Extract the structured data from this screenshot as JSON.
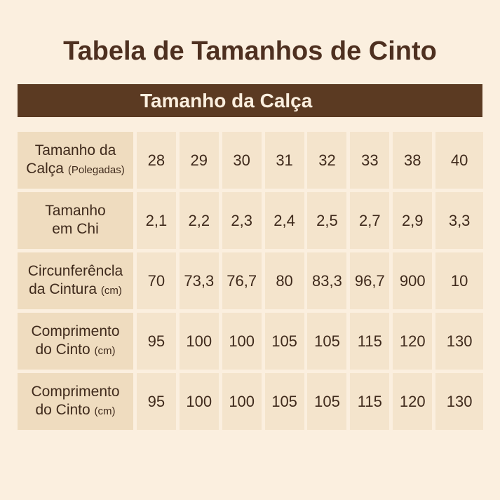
{
  "title": "Tabela de Tamanhos de Cinto",
  "header": "Tamanho da Calça",
  "rows": [
    {
      "label1": "Tamanho da",
      "label2": "Calça",
      "unit": "(Polegadas)",
      "values": [
        "28",
        "29",
        "30",
        "31",
        "32",
        "33",
        "38",
        "40"
      ]
    },
    {
      "label1": "Tamanho",
      "label2": "em Chi",
      "unit": "",
      "values": [
        "2,1",
        "2,2",
        "2,3",
        "2,4",
        "2,5",
        "2,7",
        "2,9",
        "3,3"
      ]
    },
    {
      "label1": "Circunferêncla",
      "label2": "da Cintura",
      "unit": "(cm)",
      "values": [
        "70",
        "73,3",
        "76,7",
        "80",
        "83,3",
        "96,7",
        "900",
        "10"
      ]
    },
    {
      "label1": "Comprimento",
      "label2": "do Cinto",
      "unit": "(cm)",
      "values": [
        "95",
        "100",
        "100",
        "105",
        "105",
        "115",
        "120",
        "130"
      ]
    },
    {
      "label1": "Comprimento",
      "label2": "do Cinto",
      "unit": "(cm)",
      "values": [
        "95",
        "100",
        "100",
        "105",
        "105",
        "115",
        "120",
        "130"
      ]
    }
  ],
  "colors": {
    "background": "#fbefdf",
    "header_bar": "#5b3a22",
    "title": "#4e3020"
  }
}
